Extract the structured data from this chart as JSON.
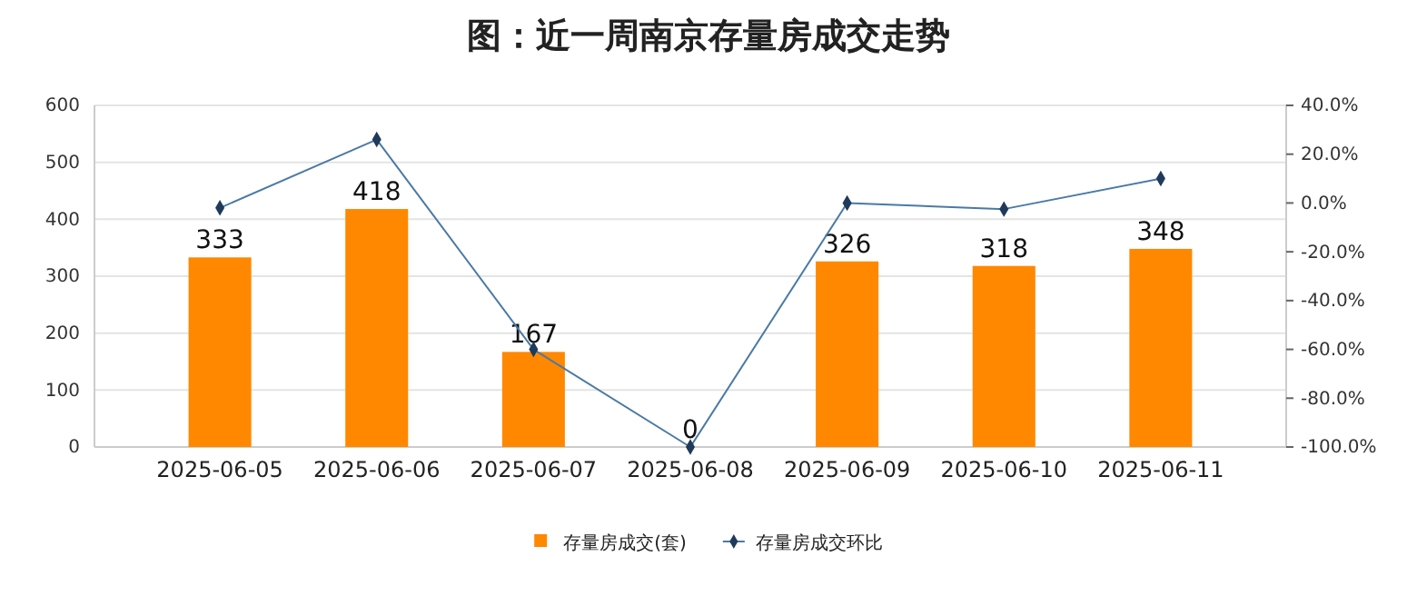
{
  "chart_data": {
    "type": "bar",
    "title": "图：近一周南京存量房成交走势",
    "categories": [
      "2025-06-05",
      "2025-06-06",
      "2025-06-07",
      "2025-06-08",
      "2025-06-09",
      "2025-06-10",
      "2025-06-11"
    ],
    "series": [
      {
        "name": "存量房成交(套)",
        "color": "#ff8800",
        "values": [
          333,
          418,
          167,
          0,
          326,
          318,
          348
        ],
        "value_labels": [
          "333",
          "418",
          "167",
          "0",
          "326",
          "318",
          "348"
        ]
      },
      {
        "name": "存量房成交环比",
        "type": "line",
        "axis": "y2",
        "color": "#4a7aa6",
        "marker": "diamond",
        "values": [
          -2,
          26,
          -60,
          -100,
          0,
          -2.5,
          10
        ]
      }
    ],
    "ylim": [
      0,
      600
    ],
    "yticks": [
      0,
      100,
      200,
      300,
      400,
      500,
      600
    ],
    "y2lim": [
      -100,
      40
    ],
    "y2ticks": [
      {
        "value": -100,
        "label": "-100.0%"
      },
      {
        "value": -80,
        "label": "-80.0%"
      },
      {
        "value": -60,
        "label": "-60.0%"
      },
      {
        "value": -40,
        "label": "-40.0%"
      },
      {
        "value": -20,
        "label": "-20.0%"
      },
      {
        "value": 0,
        "label": "0.0%"
      },
      {
        "value": 20,
        "label": "20.0%"
      },
      {
        "value": 40,
        "label": "40.0%"
      }
    ],
    "grid": "y",
    "legend": "bottom"
  }
}
